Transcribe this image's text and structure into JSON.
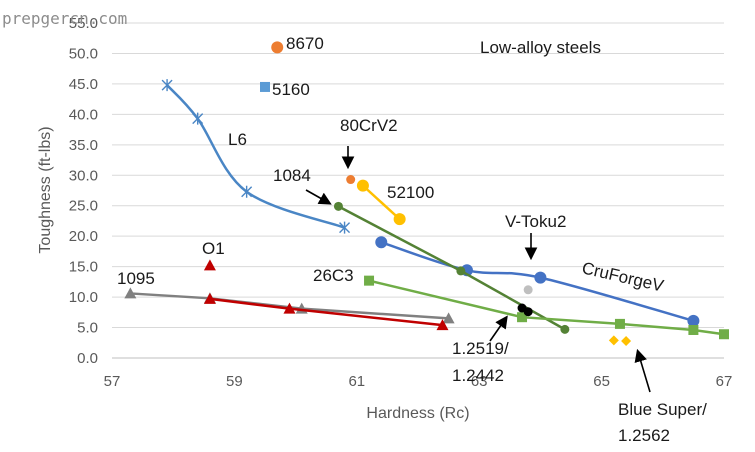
{
  "watermark": "prepgercn.com",
  "chart_data": {
    "type": "scatter",
    "title": "Low-alloy steels",
    "xlabel": "Hardness (Rc)",
    "ylabel": "Toughness (ft-lbs)",
    "xlim": [
      57,
      67
    ],
    "ylim": [
      0,
      55
    ],
    "x_ticks": [
      "57",
      "59",
      "61",
      "63",
      "65",
      "67"
    ],
    "y_ticks": [
      "0.0",
      "5.0",
      "10.0",
      "15.0",
      "20.0",
      "25.0",
      "30.0",
      "35.0",
      "40.0",
      "45.0",
      "50.0",
      "55.0"
    ],
    "grid": "horizontal",
    "legend": "none",
    "series": [
      {
        "label": "L6",
        "color": "#4a86c5",
        "marker": "star",
        "line": "smooth",
        "style": "mark",
        "points": [
          [
            57.9,
            44.8
          ],
          [
            58.4,
            39.3
          ],
          [
            59.2,
            27.3
          ],
          [
            60.8,
            21.4
          ]
        ]
      },
      {
        "label": "CruForgeV",
        "color": "#4472c4",
        "marker": "circle",
        "line": "smooth",
        "style": "italic",
        "points": [
          [
            61.4,
            19.0
          ],
          [
            62.8,
            14.4
          ],
          [
            64.0,
            13.2
          ],
          [
            66.5,
            6.1
          ]
        ]
      },
      {
        "label": "1084",
        "color": "#548235",
        "marker": "circle-small",
        "line": "straight",
        "style": "mark",
        "points": [
          [
            60.7,
            24.9
          ],
          [
            62.7,
            14.3
          ],
          [
            64.4,
            4.7
          ]
        ]
      },
      {
        "label": "26C3",
        "color": "#70ad47",
        "marker": "square",
        "line": "straight",
        "style": "plain",
        "points": [
          [
            61.2,
            12.7
          ],
          [
            63.7,
            6.7
          ],
          [
            65.3,
            5.6
          ],
          [
            66.5,
            4.6
          ],
          [
            67.0,
            3.9
          ]
        ]
      },
      {
        "label": "1095",
        "color": "#808080",
        "marker": "triangle",
        "line": "straight",
        "style": "plain",
        "points": [
          [
            57.3,
            10.6
          ],
          [
            58.6,
            9.8
          ],
          [
            60.1,
            8.1
          ],
          [
            62.5,
            6.5
          ]
        ]
      },
      {
        "label": "O1",
        "color": "#c00000",
        "marker": "triangle",
        "line": "straight",
        "style": "plain",
        "points": [
          [
            58.6,
            9.7
          ],
          [
            59.9,
            8.1
          ],
          [
            62.4,
            5.4
          ]
        ]
      },
      {
        "label": "52100",
        "color": "#ffc000",
        "marker": "circle",
        "line": "straight",
        "style": "plain",
        "points": [
          [
            61.1,
            28.3
          ],
          [
            61.7,
            22.8
          ]
        ]
      },
      {
        "label": "8670",
        "color": "#ed7d31",
        "marker": "circle",
        "line": "none",
        "style": "plain",
        "points": [
          [
            59.7,
            51.0
          ]
        ]
      },
      {
        "label": "5160",
        "color": "#5b9bd5",
        "marker": "square",
        "line": "none",
        "style": "plain",
        "points": [
          [
            59.5,
            44.5
          ]
        ]
      },
      {
        "label": "80CrV2",
        "color": "#ed7d31",
        "marker": "circle-small",
        "line": "none",
        "style": "arrow",
        "points": [
          [
            60.9,
            29.3
          ]
        ]
      },
      {
        "label": "O1",
        "color": "#c00000",
        "marker": "triangle",
        "line": "none",
        "style": "plain",
        "points": [
          [
            58.6,
            15.2
          ]
        ]
      },
      {
        "label": "V-Toku2",
        "color": "#bfbfbf",
        "marker": "circle-small",
        "line": "none",
        "style": "arrow",
        "points": [
          [
            63.8,
            11.2
          ]
        ]
      },
      {
        "label": "1.2519/ 1.2442",
        "color": "#000000",
        "marker": "circle-small",
        "line": "none",
        "style": "arrow",
        "points": [
          [
            63.7,
            8.2
          ],
          [
            63.8,
            7.6
          ]
        ]
      },
      {
        "label": "Blue Super/ 1.2562",
        "color": "#ffc000",
        "marker": "diamond",
        "line": "none",
        "style": "arrow",
        "points": [
          [
            65.2,
            2.9
          ],
          [
            65.4,
            2.8
          ]
        ]
      }
    ],
    "labels": [
      {
        "text": "8670"
      },
      {
        "text": "5160"
      },
      {
        "text": "L6"
      },
      {
        "text": "80CrV2"
      },
      {
        "text": "1084"
      },
      {
        "text": "52100"
      },
      {
        "text": "V-Toku2"
      },
      {
        "text": "O1"
      },
      {
        "text": "26C3"
      },
      {
        "text": "1095"
      },
      {
        "text": "CruForgeV"
      },
      {
        "text": "1.2519/"
      },
      {
        "text": "1.2442"
      },
      {
        "text": "Blue Super/"
      },
      {
        "text": "1.2562"
      }
    ]
  }
}
